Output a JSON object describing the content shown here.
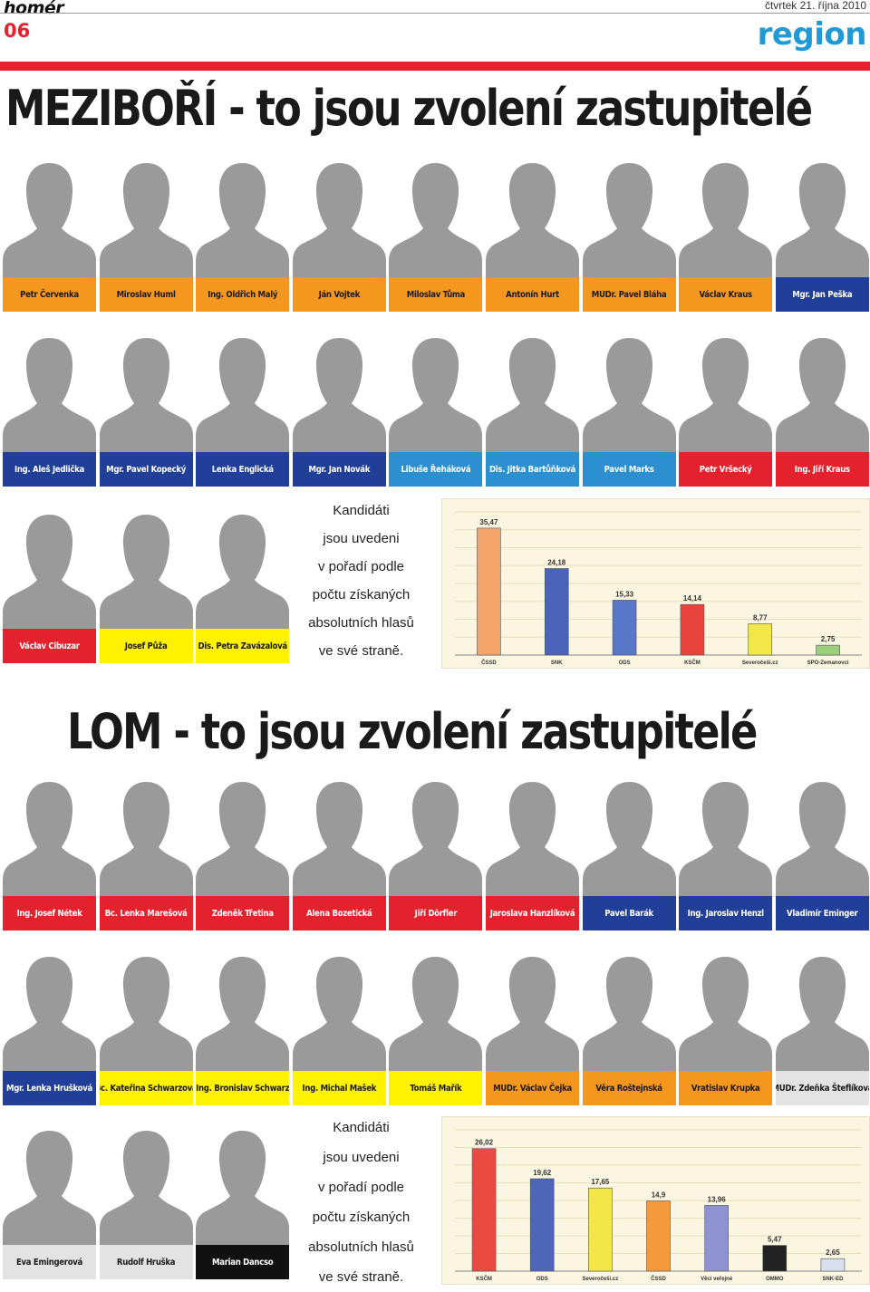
{
  "header": {
    "logo": "homér",
    "date": "čtvrtek 21. října 2010",
    "page_number": "06",
    "section": "region"
  },
  "colors": {
    "orange": "#f5971f",
    "blue": "#213f99",
    "lightblue": "#2b8fd0",
    "red": "#e3222d",
    "yellow": "#fff200",
    "lightgray": "#e3e3e3"
  },
  "mezibori": {
    "headline": "MEZIBOŘÍ - to jsou zvolení zastupitelé",
    "note": [
      "Kandidáti",
      "jsou uvedeni",
      "v pořadí podle",
      "počtu získaných",
      "absolutních hlasů",
      "ve své straně."
    ],
    "rows": [
      [
        {
          "name": "Petr Červenka",
          "color": "orange"
        },
        {
          "name": "Miroslav Huml",
          "color": "orange"
        },
        {
          "name": "Ing. Oldřich Malý",
          "color": "orange"
        },
        {
          "name": "Ján Vojtek",
          "color": "orange"
        },
        {
          "name": "Miloslav Tůma",
          "color": "orange"
        },
        {
          "name": "Antonín Hurt",
          "color": "orange"
        },
        {
          "name": "MUDr. Pavel Bláha",
          "color": "orange"
        },
        {
          "name": "Václav Kraus",
          "color": "orange"
        },
        {
          "name": "Mgr. Jan Peška",
          "color": "blue"
        }
      ],
      [
        {
          "name": "Ing. Aleš Jedlička",
          "color": "blue"
        },
        {
          "name": "Mgr. Pavel Kopecký",
          "color": "blue"
        },
        {
          "name": "Lenka Englická",
          "color": "blue"
        },
        {
          "name": "Mgr. Jan Novák",
          "color": "blue"
        },
        {
          "name": "Libuše Řeháková",
          "color": "lightblue"
        },
        {
          "name": "Dis. Jitka Bartůňková",
          "color": "lightblue"
        },
        {
          "name": "Pavel Marks",
          "color": "lightblue"
        },
        {
          "name": "Petr Vršecký",
          "color": "red"
        },
        {
          "name": "Ing. Jiří Kraus",
          "color": "red"
        }
      ],
      [
        {
          "name": "Václav Cibuzar",
          "color": "red"
        },
        {
          "name": "Josef Půža",
          "color": "yellow"
        },
        {
          "name": "Dis. Petra Zavázalová",
          "color": "yellow"
        }
      ]
    ]
  },
  "lom": {
    "headline": "LOM - to jsou zvolení zastupitelé",
    "note": [
      "Kandidáti",
      "jsou uvedeni",
      "v pořadí podle",
      "počtu získaných",
      "absolutních hlasů",
      "ve své straně."
    ],
    "rows": [
      [
        {
          "name": "Ing. Josef Nétek",
          "color": "red"
        },
        {
          "name": "Bc. Lenka Marešová",
          "color": "red"
        },
        {
          "name": "Zdeněk Třetina",
          "color": "red"
        },
        {
          "name": "Alena Bozetická",
          "color": "red"
        },
        {
          "name": "Jiří Dörfler",
          "color": "red"
        },
        {
          "name": "Jaroslava Hanzlíková",
          "color": "red"
        },
        {
          "name": "Pavel Barák",
          "color": "blue"
        },
        {
          "name": "Ing. Jaroslav Henzl",
          "color": "blue"
        },
        {
          "name": "Vladimír Eminger",
          "color": "blue"
        }
      ],
      [
        {
          "name": "Mgr. Lenka Hrušková",
          "color": "blue"
        },
        {
          "name": "Bc. Kateřina Schwarzová",
          "color": "yellow"
        },
        {
          "name": "Ing. Bronislav Schwarz",
          "color": "yellow"
        },
        {
          "name": "Ing. Michal Mašek",
          "color": "yellow"
        },
        {
          "name": "Tomáš Mařík",
          "color": "yellow"
        },
        {
          "name": "MUDr. Václav Čejka",
          "color": "orange"
        },
        {
          "name": "Věra Roštejnská",
          "color": "orange"
        },
        {
          "name": "Vratislav Krupka",
          "color": "orange"
        },
        {
          "name": "MUDr. Zdeňka Šteflíková",
          "color": "lightgray"
        }
      ],
      [
        {
          "name": "Eva Emingerová",
          "color": "lightgray"
        },
        {
          "name": "Rudolf Hruška",
          "color": "lightgray"
        },
        {
          "name": "Marian Dancso",
          "color": "black"
        }
      ]
    ]
  },
  "chart_data": [
    {
      "type": "bar",
      "title": "",
      "categories": [
        "ČSSD",
        "SNK",
        "ODS",
        "KSČM",
        "Severočeši.cz",
        "SPO-Zemanovci"
      ],
      "values": [
        35.47,
        24.18,
        15.33,
        14.14,
        8.77,
        2.75
      ],
      "value_labels": [
        "35,47",
        "24,18",
        "15,33",
        "14,14",
        "8,77",
        "2,75"
      ],
      "bar_colors": [
        "#f5a46a",
        "#4a63b8",
        "#5877c9",
        "#e8433d",
        "#f2e84a",
        "#9ad07a"
      ],
      "ylim": [
        0,
        40
      ],
      "grid": true
    },
    {
      "type": "bar",
      "title": "",
      "categories": [
        "KSČM",
        "ODS",
        "Severočeši.cz",
        "ČSSD",
        "Věci veřejné",
        "OMMO",
        "SNK-ED"
      ],
      "values": [
        26.02,
        19.62,
        17.65,
        14.9,
        13.96,
        5.47,
        2.65
      ],
      "value_labels": [
        "26,02",
        "19,62",
        "17,65",
        "14,9",
        "13,96",
        "5,47",
        "2,65"
      ],
      "bar_colors": [
        "#e94b43",
        "#4d66b8",
        "#f2e64a",
        "#f29a3c",
        "#8d93d0",
        "#222222",
        "#d8dfee"
      ],
      "ylim": [
        0,
        30
      ],
      "grid": true
    }
  ]
}
